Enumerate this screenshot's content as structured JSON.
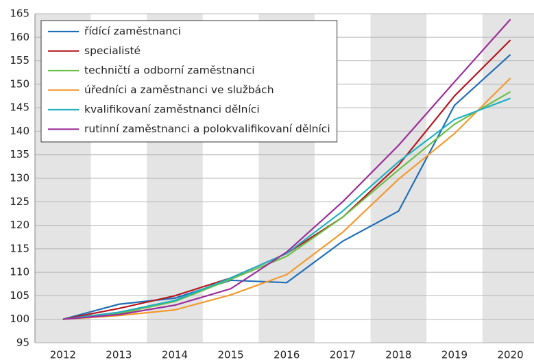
{
  "chart_data": {
    "type": "line",
    "categories": [
      "2012",
      "2013",
      "2014",
      "2015",
      "2016",
      "2017",
      "2018",
      "2019",
      "2020"
    ],
    "series": [
      {
        "name": "řídící zaměstnanci",
        "color": "#1f6fb5",
        "values": [
          100,
          103.2,
          104.5,
          108.3,
          107.8,
          116.6,
          123,
          145.5,
          156.3
        ]
      },
      {
        "name": "specialisté",
        "color": "#b5171d",
        "values": [
          100,
          102.3,
          105,
          108.8,
          114,
          121.7,
          132.8,
          147.5,
          159.4
        ]
      },
      {
        "name": "techničtí a odborní zaměstnanci",
        "color": "#6abf45",
        "values": [
          100,
          101.2,
          103.8,
          108.5,
          113.4,
          121.7,
          131.8,
          141.5,
          148.4
        ]
      },
      {
        "name": "úředníci a zaměstnanci ve službách",
        "color": "#f29a2e",
        "values": [
          100,
          100.8,
          102,
          105.2,
          109.5,
          118.5,
          129.8,
          139.5,
          151.3
        ]
      },
      {
        "name": "kvalifikovaní zaměstnanci dělníci",
        "color": "#1fb1c1",
        "values": [
          100,
          101.5,
          104,
          108.8,
          114,
          123,
          133.5,
          142.5,
          147
        ]
      },
      {
        "name": "rutinní zaměstnanci a polokvalifikovaní dělníci",
        "color": "#9b2d9b",
        "values": [
          100,
          101,
          103,
          106.5,
          114.3,
          125,
          137,
          150.5,
          163.8
        ]
      }
    ],
    "ylim": [
      95,
      165
    ],
    "yticks": [
      95,
      100,
      105,
      110,
      115,
      120,
      125,
      130,
      135,
      140,
      145,
      150,
      155,
      160,
      165
    ],
    "grid": true,
    "legend": "upper left"
  }
}
